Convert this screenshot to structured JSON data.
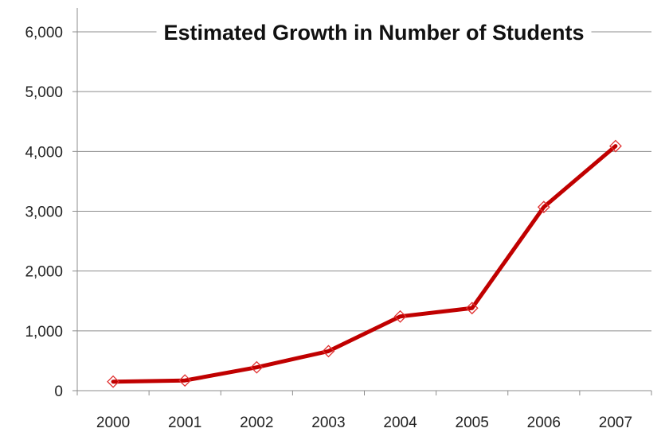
{
  "chart_data": {
    "type": "line",
    "title": "Estimated Growth in Number of Students",
    "xlabel": "",
    "ylabel": "",
    "categories": [
      "2000",
      "2001",
      "2002",
      "2003",
      "2004",
      "2005",
      "2006",
      "2007"
    ],
    "series": [
      {
        "values": [
          150,
          170,
          390,
          660,
          1240,
          1380,
          3070,
          4090
        ],
        "color": "#c00000",
        "marker": "diamond"
      }
    ],
    "ylim": [
      0,
      6000
    ],
    "yticks": [
      "0",
      "1,000",
      "2,000",
      "3,000",
      "4,000",
      "5,000",
      "6,000"
    ],
    "grid": true,
    "legend": "none"
  }
}
